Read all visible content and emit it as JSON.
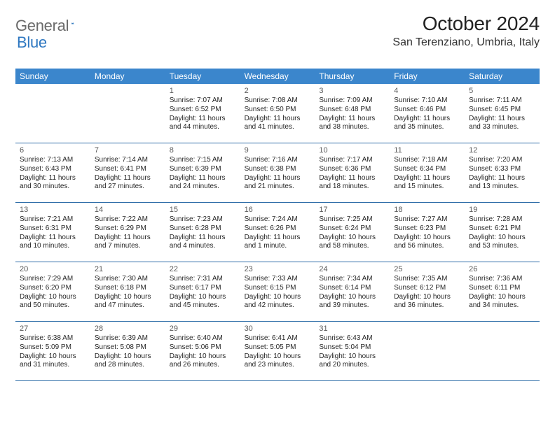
{
  "logo": {
    "text1": "General",
    "text2": "Blue"
  },
  "title": "October 2024",
  "location": "San Terenziano, Umbria, Italy",
  "colors": {
    "header_bg": "#3b86cc",
    "header_text": "#ffffff",
    "week_border": "#2f6ea8",
    "logo_gray": "#6a6a6a",
    "logo_blue": "#2f78c1",
    "text": "#262626",
    "daynum": "#5a5a5a"
  },
  "dow": [
    "Sunday",
    "Monday",
    "Tuesday",
    "Wednesday",
    "Thursday",
    "Friday",
    "Saturday"
  ],
  "weeks": [
    [
      {
        "n": "",
        "rise": "",
        "set": "",
        "dl": ""
      },
      {
        "n": "",
        "rise": "",
        "set": "",
        "dl": ""
      },
      {
        "n": "1",
        "rise": "7:07 AM",
        "set": "6:52 PM",
        "dl": "11 hours and 44 minutes."
      },
      {
        "n": "2",
        "rise": "7:08 AM",
        "set": "6:50 PM",
        "dl": "11 hours and 41 minutes."
      },
      {
        "n": "3",
        "rise": "7:09 AM",
        "set": "6:48 PM",
        "dl": "11 hours and 38 minutes."
      },
      {
        "n": "4",
        "rise": "7:10 AM",
        "set": "6:46 PM",
        "dl": "11 hours and 35 minutes."
      },
      {
        "n": "5",
        "rise": "7:11 AM",
        "set": "6:45 PM",
        "dl": "11 hours and 33 minutes."
      }
    ],
    [
      {
        "n": "6",
        "rise": "7:13 AM",
        "set": "6:43 PM",
        "dl": "11 hours and 30 minutes."
      },
      {
        "n": "7",
        "rise": "7:14 AM",
        "set": "6:41 PM",
        "dl": "11 hours and 27 minutes."
      },
      {
        "n": "8",
        "rise": "7:15 AM",
        "set": "6:39 PM",
        "dl": "11 hours and 24 minutes."
      },
      {
        "n": "9",
        "rise": "7:16 AM",
        "set": "6:38 PM",
        "dl": "11 hours and 21 minutes."
      },
      {
        "n": "10",
        "rise": "7:17 AM",
        "set": "6:36 PM",
        "dl": "11 hours and 18 minutes."
      },
      {
        "n": "11",
        "rise": "7:18 AM",
        "set": "6:34 PM",
        "dl": "11 hours and 15 minutes."
      },
      {
        "n": "12",
        "rise": "7:20 AM",
        "set": "6:33 PM",
        "dl": "11 hours and 13 minutes."
      }
    ],
    [
      {
        "n": "13",
        "rise": "7:21 AM",
        "set": "6:31 PM",
        "dl": "11 hours and 10 minutes."
      },
      {
        "n": "14",
        "rise": "7:22 AM",
        "set": "6:29 PM",
        "dl": "11 hours and 7 minutes."
      },
      {
        "n": "15",
        "rise": "7:23 AM",
        "set": "6:28 PM",
        "dl": "11 hours and 4 minutes."
      },
      {
        "n": "16",
        "rise": "7:24 AM",
        "set": "6:26 PM",
        "dl": "11 hours and 1 minute."
      },
      {
        "n": "17",
        "rise": "7:25 AM",
        "set": "6:24 PM",
        "dl": "10 hours and 58 minutes."
      },
      {
        "n": "18",
        "rise": "7:27 AM",
        "set": "6:23 PM",
        "dl": "10 hours and 56 minutes."
      },
      {
        "n": "19",
        "rise": "7:28 AM",
        "set": "6:21 PM",
        "dl": "10 hours and 53 minutes."
      }
    ],
    [
      {
        "n": "20",
        "rise": "7:29 AM",
        "set": "6:20 PM",
        "dl": "10 hours and 50 minutes."
      },
      {
        "n": "21",
        "rise": "7:30 AM",
        "set": "6:18 PM",
        "dl": "10 hours and 47 minutes."
      },
      {
        "n": "22",
        "rise": "7:31 AM",
        "set": "6:17 PM",
        "dl": "10 hours and 45 minutes."
      },
      {
        "n": "23",
        "rise": "7:33 AM",
        "set": "6:15 PM",
        "dl": "10 hours and 42 minutes."
      },
      {
        "n": "24",
        "rise": "7:34 AM",
        "set": "6:14 PM",
        "dl": "10 hours and 39 minutes."
      },
      {
        "n": "25",
        "rise": "7:35 AM",
        "set": "6:12 PM",
        "dl": "10 hours and 36 minutes."
      },
      {
        "n": "26",
        "rise": "7:36 AM",
        "set": "6:11 PM",
        "dl": "10 hours and 34 minutes."
      }
    ],
    [
      {
        "n": "27",
        "rise": "6:38 AM",
        "set": "5:09 PM",
        "dl": "10 hours and 31 minutes."
      },
      {
        "n": "28",
        "rise": "6:39 AM",
        "set": "5:08 PM",
        "dl": "10 hours and 28 minutes."
      },
      {
        "n": "29",
        "rise": "6:40 AM",
        "set": "5:06 PM",
        "dl": "10 hours and 26 minutes."
      },
      {
        "n": "30",
        "rise": "6:41 AM",
        "set": "5:05 PM",
        "dl": "10 hours and 23 minutes."
      },
      {
        "n": "31",
        "rise": "6:43 AM",
        "set": "5:04 PM",
        "dl": "10 hours and 20 minutes."
      },
      {
        "n": "",
        "rise": "",
        "set": "",
        "dl": ""
      },
      {
        "n": "",
        "rise": "",
        "set": "",
        "dl": ""
      }
    ]
  ],
  "labels": {
    "sunrise": "Sunrise: ",
    "sunset": "Sunset: ",
    "daylight": "Daylight: "
  }
}
